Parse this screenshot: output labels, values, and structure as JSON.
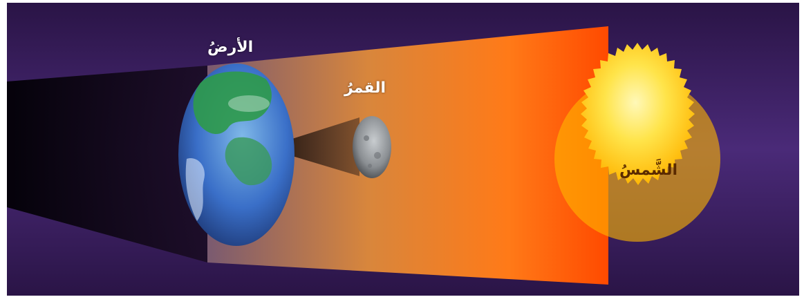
{
  "diagram": {
    "labels": {
      "earth": "الأرضُ",
      "moon": "القمرُ",
      "sun": "الشَّمسُ"
    },
    "colors": {
      "background_dark": "#2a1446",
      "background_mid": "#4a2a78",
      "sun_core": "#fff6a0",
      "sun_edge": "#ffc400",
      "beam_near_sun": "#ff6a10",
      "beam_far": "#c87a3c",
      "earth_land": "#2e9a4a",
      "earth_ocean": "#3a6fc8",
      "moon": "#8a8e92",
      "shadow": "#0a0410"
    }
  }
}
